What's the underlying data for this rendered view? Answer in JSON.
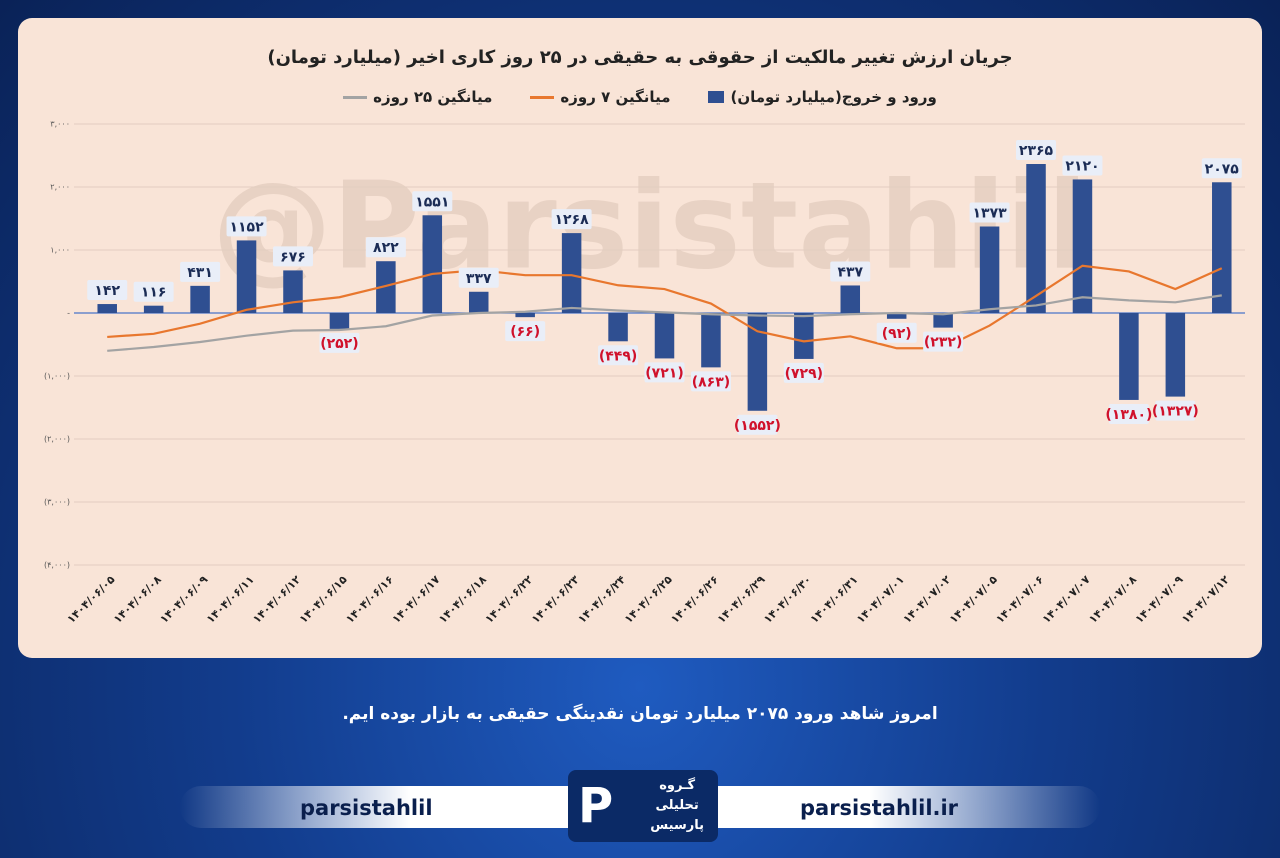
{
  "chart_data": {
    "type": "bar",
    "title": "جریان ارزش تغییر مالکیت از حقوقی به حقیقی در ۲۵ روز کاری اخیر (میلیارد تومان)",
    "watermark": "@Parsistahlil",
    "categories": [
      "۱۴۰۴/۰۶/۰۵",
      "۱۴۰۴/۰۶/۰۸",
      "۱۴۰۴/۰۶/۰۹",
      "۱۴۰۴/۰۶/۱۱",
      "۱۴۰۴/۰۶/۱۲",
      "۱۴۰۴/۰۶/۱۵",
      "۱۴۰۴/۰۶/۱۶",
      "۱۴۰۴/۰۶/۱۷",
      "۱۴۰۴/۰۶/۱۸",
      "۱۴۰۴/۰۶/۲۲",
      "۱۴۰۴/۰۶/۲۳",
      "۱۴۰۴/۰۶/۲۴",
      "۱۴۰۴/۰۶/۲۵",
      "۱۴۰۴/۰۶/۲۶",
      "۱۴۰۴/۰۶/۲۹",
      "۱۴۰۴/۰۶/۳۰",
      "۱۴۰۴/۰۶/۳۱",
      "۱۴۰۴/۰۷/۰۱",
      "۱۴۰۴/۰۷/۰۲",
      "۱۴۰۴/۰۷/۰۵",
      "۱۴۰۴/۰۷/۰۶",
      "۱۴۰۴/۰۷/۰۷",
      "۱۴۰۴/۰۷/۰۸",
      "۱۴۰۴/۰۷/۰۹",
      "۱۴۰۴/۰۷/۱۲"
    ],
    "series": [
      {
        "name": "ورود و خروج(میلیارد تومان)",
        "type": "bar",
        "color": "#2f4f91",
        "values": [
          142,
          116,
          431,
          1152,
          676,
          -252,
          822,
          1551,
          337,
          -66,
          1268,
          -449,
          -721,
          -863,
          -1552,
          -729,
          437,
          -92,
          -232,
          1373,
          2365,
          2120,
          -1380,
          -1327,
          2075
        ],
        "value_labels": [
          "۱۴۲",
          "۱۱۶",
          "۴۳۱",
          "۱۱۵۲",
          "۶۷۶",
          "(۲۵۲)",
          "۸۲۲",
          "۱۵۵۱",
          "۳۳۷",
          "(۶۶)",
          "۱۲۶۸",
          "(۴۴۹)",
          "(۷۲۱)",
          "(۸۶۳)",
          "(۱۵۵۲)",
          "(۷۲۹)",
          "۴۳۷",
          "(۹۲)",
          "(۲۳۲)",
          "۱۳۷۳",
          "۲۳۶۵",
          "۲۱۲۰",
          "(۱۳۸۰)",
          "(۱۳۲۷)",
          "۲۰۷۵"
        ]
      },
      {
        "name": "میانگین ۷ روزه",
        "type": "line",
        "color": "#e8772e",
        "values": [
          -380,
          -330,
          -170,
          50,
          170,
          250,
          430,
          620,
          680,
          600,
          600,
          440,
          380,
          150,
          -290,
          -450,
          -370,
          -560,
          -560,
          -200,
          270,
          750,
          660,
          380,
          710
        ]
      },
      {
        "name": "میانگین ۲۵ روزه",
        "type": "line",
        "color": "#a3a3a3",
        "values": [
          -600,
          -540,
          -460,
          -360,
          -280,
          -270,
          -210,
          -40,
          0,
          20,
          80,
          40,
          10,
          -20,
          -40,
          -50,
          -20,
          0,
          -20,
          60,
          120,
          250,
          200,
          170,
          280
        ]
      }
    ],
    "ylim": [
      -4000,
      3000
    ],
    "yticks": [
      {
        "value": 3000,
        "label": "۳,۰۰۰"
      },
      {
        "value": 2000,
        "label": "۲,۰۰۰"
      },
      {
        "value": 1000,
        "label": "۱,۰۰۰"
      },
      {
        "value": 0,
        "label": "-"
      },
      {
        "value": -1000,
        "label": "(۱,۰۰۰)"
      },
      {
        "value": -2000,
        "label": "(۲,۰۰۰)"
      },
      {
        "value": -3000,
        "label": "(۳,۰۰۰)"
      },
      {
        "value": -4000,
        "label": "(۴,۰۰۰)"
      }
    ]
  },
  "caption": "امروز شاهد ورود ۲۰۷۵ میلیارد تومان نقدینگی حقیقی به بازار بوده ایم.",
  "footer": {
    "telegram": "parsistahlil",
    "website": "parsistahlil.ir",
    "logo": [
      "گـروه",
      "تحلیلی",
      "پارسیس"
    ]
  }
}
